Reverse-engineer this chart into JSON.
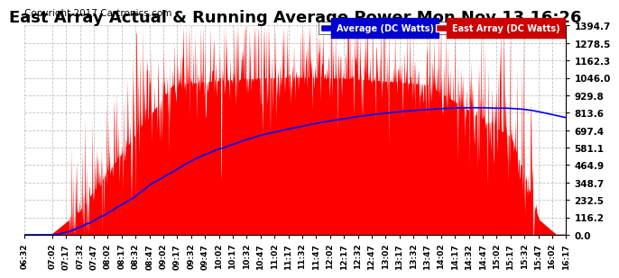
{
  "title": "East Array Actual & Running Average Power Mon Nov 13 16:26",
  "copyright": "Copyright 2017 Cartronics.com",
  "ylabel_right": [
    "1394.7",
    "1278.5",
    "1162.3",
    "1046.0",
    "929.8",
    "813.6",
    "697.4",
    "581.1",
    "464.9",
    "348.7",
    "232.5",
    "116.2",
    "0.0"
  ],
  "ymax": 1394.7,
  "ymin": 0.0,
  "yticks": [
    1394.7,
    1278.5,
    1162.3,
    1046.0,
    929.8,
    813.6,
    697.4,
    581.1,
    464.9,
    348.7,
    232.5,
    116.2,
    0.0
  ],
  "legend_avg_label": "Average (DC Watts)",
  "legend_east_label": "East Array (DC Watts)",
  "legend_avg_bg": "#0000cc",
  "legend_east_bg": "#cc0000",
  "east_color": "#ff0000",
  "avg_color": "#0000ff",
  "background_color": "#ffffff",
  "grid_color": "#aaaaaa",
  "title_fontsize": 13,
  "copyright_fontsize": 7.5,
  "tick_times_str": [
    "06:32",
    "07:02",
    "07:17",
    "07:32",
    "07:47",
    "08:02",
    "08:17",
    "08:32",
    "08:47",
    "09:02",
    "09:17",
    "09:32",
    "09:47",
    "10:02",
    "10:17",
    "10:32",
    "10:47",
    "11:02",
    "11:17",
    "11:32",
    "11:47",
    "12:02",
    "12:17",
    "12:32",
    "12:47",
    "13:02",
    "13:17",
    "13:32",
    "13:47",
    "14:02",
    "14:17",
    "14:32",
    "14:47",
    "15:02",
    "15:17",
    "15:32",
    "15:47",
    "16:02",
    "16:17"
  ]
}
